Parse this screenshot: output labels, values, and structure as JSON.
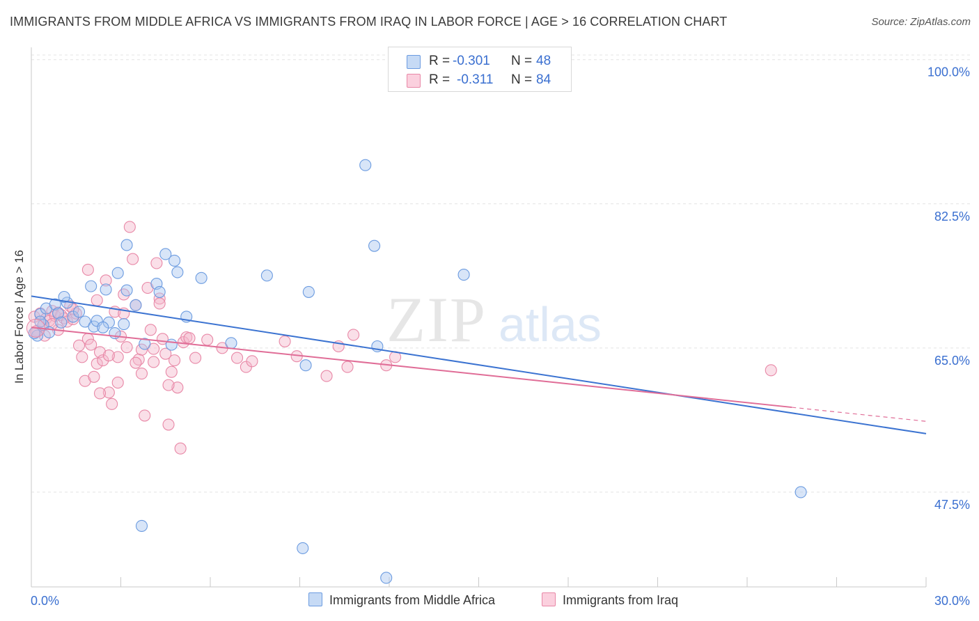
{
  "header": {
    "title": "IMMIGRANTS FROM MIDDLE AFRICA VS IMMIGRANTS FROM IRAQ IN LABOR FORCE | AGE > 16 CORRELATION CHART",
    "source": "Source: ZipAtlas.com"
  },
  "watermark": {
    "zip": "ZIP",
    "atlas": "atlas"
  },
  "legend": {
    "rows": [
      {
        "r_label": "R =",
        "r_value": "-0.301",
        "n_label": "N =",
        "n_value": "48"
      },
      {
        "r_label": "R =",
        "r_value": "-0.311",
        "n_label": "N =",
        "n_value": "84"
      }
    ]
  },
  "colors": {
    "blue_fill": "#a9c6f0",
    "blue_stroke": "#6b9be0",
    "blue_line": "#3b73d1",
    "pink_fill": "#f5b8cb",
    "pink_stroke": "#e887a6",
    "pink_line": "#e06d97",
    "axis_text": "#3a6fd0",
    "grid": "#e4e4e4"
  },
  "chart_data": {
    "type": "scatter",
    "title": "IMMIGRANTS FROM MIDDLE AFRICA VS IMMIGRANTS FROM IRAQ IN LABOR FORCE | AGE > 16 CORRELATION CHART",
    "xlabel": "",
    "ylabel": "In Labor Force | Age > 16",
    "xlim": [
      0,
      30
    ],
    "ylim": [
      36,
      101.5
    ],
    "x_tick_labels": [
      "0.0%",
      "30.0%"
    ],
    "y_ticks": [
      {
        "value": 100,
        "label": "100.0%"
      },
      {
        "value": 82.5,
        "label": "82.5%"
      },
      {
        "value": 65,
        "label": "65.0%"
      },
      {
        "value": 47.5,
        "label": "47.5%"
      }
    ],
    "grid": true,
    "legend_position": "top-center",
    "series": [
      {
        "name": "Immigrants from Middle Africa",
        "color": "#6b9be0",
        "trend": {
          "x": [
            0,
            30
          ],
          "y": [
            71.3,
            54.6
          ]
        },
        "points": [
          [
            0.2,
            66.5
          ],
          [
            0.3,
            69.1
          ],
          [
            0.4,
            67.8
          ],
          [
            0.5,
            69.8
          ],
          [
            0.6,
            66.9
          ],
          [
            0.8,
            70.3
          ],
          [
            0.9,
            69.2
          ],
          [
            1.0,
            68.1
          ],
          [
            1.2,
            70.5
          ],
          [
            1.4,
            68.8
          ],
          [
            1.6,
            69.4
          ],
          [
            1.8,
            68.2
          ],
          [
            2.0,
            72.5
          ],
          [
            2.1,
            67.6
          ],
          [
            2.2,
            68.3
          ],
          [
            2.5,
            72.1
          ],
          [
            2.6,
            68.1
          ],
          [
            2.8,
            66.8
          ],
          [
            2.9,
            74.1
          ],
          [
            3.1,
            67.9
          ],
          [
            3.2,
            77.5
          ],
          [
            3.2,
            72.0
          ],
          [
            3.5,
            70.2
          ],
          [
            3.7,
            43.4
          ],
          [
            3.8,
            65.5
          ],
          [
            4.2,
            72.8
          ],
          [
            4.3,
            71.8
          ],
          [
            4.5,
            76.4
          ],
          [
            4.7,
            65.4
          ],
          [
            4.8,
            75.6
          ],
          [
            4.9,
            74.2
          ],
          [
            5.7,
            73.5
          ],
          [
            6.7,
            65.6
          ],
          [
            7.9,
            73.8
          ],
          [
            9.1,
            40.7
          ],
          [
            9.2,
            62.9
          ],
          [
            9.3,
            71.8
          ],
          [
            11.2,
            87.2
          ],
          [
            11.5,
            77.4
          ],
          [
            11.6,
            65.2
          ],
          [
            11.9,
            37.1
          ],
          [
            14.5,
            73.9
          ],
          [
            25.8,
            47.5
          ],
          [
            0.1,
            66.8
          ],
          [
            0.3,
            68.2
          ],
          [
            1.1,
            71.2
          ],
          [
            2.4,
            67.5
          ],
          [
            5.2,
            68.8
          ]
        ]
      },
      {
        "name": "Immigrants from Iraq",
        "color": "#e887a6",
        "trend": {
          "x": [
            0,
            25.5
          ],
          "y": [
            67.5,
            57.8
          ]
        },
        "trend_extension": {
          "x": [
            25.5,
            30
          ],
          "y": [
            57.8,
            56.1
          ]
        },
        "points": [
          [
            0.1,
            68.8
          ],
          [
            0.2,
            67.1
          ],
          [
            0.3,
            69.2
          ],
          [
            0.4,
            67.8
          ],
          [
            0.5,
            68.6
          ],
          [
            0.6,
            68.3
          ],
          [
            0.7,
            69.5
          ],
          [
            0.8,
            68.9
          ],
          [
            0.9,
            67.2
          ],
          [
            1.0,
            69.0
          ],
          [
            1.1,
            68.6
          ],
          [
            1.2,
            68.2
          ],
          [
            1.3,
            70.1
          ],
          [
            1.4,
            68.5
          ],
          [
            1.5,
            69.2
          ],
          [
            1.6,
            65.3
          ],
          [
            1.7,
            63.9
          ],
          [
            1.8,
            61.0
          ],
          [
            1.9,
            66.1
          ],
          [
            2.0,
            65.4
          ],
          [
            2.1,
            61.5
          ],
          [
            2.2,
            63.1
          ],
          [
            2.3,
            64.5
          ],
          [
            2.4,
            63.5
          ],
          [
            2.5,
            73.2
          ],
          [
            2.6,
            59.6
          ],
          [
            2.7,
            58.2
          ],
          [
            2.8,
            69.4
          ],
          [
            2.9,
            63.9
          ],
          [
            3.0,
            66.4
          ],
          [
            3.1,
            69.2
          ],
          [
            3.2,
            65.1
          ],
          [
            3.3,
            79.7
          ],
          [
            3.4,
            75.8
          ],
          [
            3.5,
            70.2
          ],
          [
            3.6,
            63.6
          ],
          [
            3.7,
            61.9
          ],
          [
            3.8,
            56.8
          ],
          [
            3.9,
            72.3
          ],
          [
            4.0,
            67.2
          ],
          [
            4.1,
            63.3
          ],
          [
            4.2,
            75.3
          ],
          [
            4.3,
            71.0
          ],
          [
            4.4,
            66.1
          ],
          [
            4.5,
            64.3
          ],
          [
            4.6,
            55.7
          ],
          [
            4.7,
            62.1
          ],
          [
            4.8,
            63.5
          ],
          [
            4.9,
            60.2
          ],
          [
            5.0,
            52.8
          ],
          [
            5.1,
            65.7
          ],
          [
            5.2,
            66.3
          ],
          [
            5.3,
            66.2
          ],
          [
            5.5,
            63.8
          ],
          [
            0.15,
            67.0
          ],
          [
            0.45,
            66.5
          ],
          [
            0.9,
            69.3
          ],
          [
            2.2,
            70.8
          ],
          [
            3.1,
            71.5
          ],
          [
            4.1,
            64.9
          ],
          [
            1.9,
            74.5
          ],
          [
            2.3,
            59.5
          ],
          [
            2.9,
            60.8
          ],
          [
            3.5,
            63.2
          ],
          [
            5.9,
            66.0
          ],
          [
            6.4,
            65.0
          ],
          [
            6.9,
            63.8
          ],
          [
            7.2,
            62.7
          ],
          [
            7.4,
            63.4
          ],
          [
            8.5,
            65.8
          ],
          [
            8.9,
            64.0
          ],
          [
            9.9,
            61.6
          ],
          [
            10.3,
            65.2
          ],
          [
            10.6,
            62.7
          ],
          [
            10.8,
            66.6
          ],
          [
            11.9,
            62.9
          ],
          [
            12.2,
            63.9
          ],
          [
            24.8,
            62.3
          ],
          [
            4.6,
            60.5
          ],
          [
            3.7,
            64.8
          ],
          [
            4.3,
            70.4
          ],
          [
            2.6,
            64.1
          ],
          [
            1.4,
            69.7
          ],
          [
            0.7,
            67.9
          ]
        ]
      }
    ]
  },
  "axes": {
    "x_left_label": "0.0%",
    "x_right_label": "30.0%",
    "ylabel": "In Labor Force | Age > 16"
  },
  "bottom_legend": {
    "items": [
      {
        "label": "Immigrants from Middle Africa"
      },
      {
        "label": "Immigrants from Iraq"
      }
    ]
  }
}
